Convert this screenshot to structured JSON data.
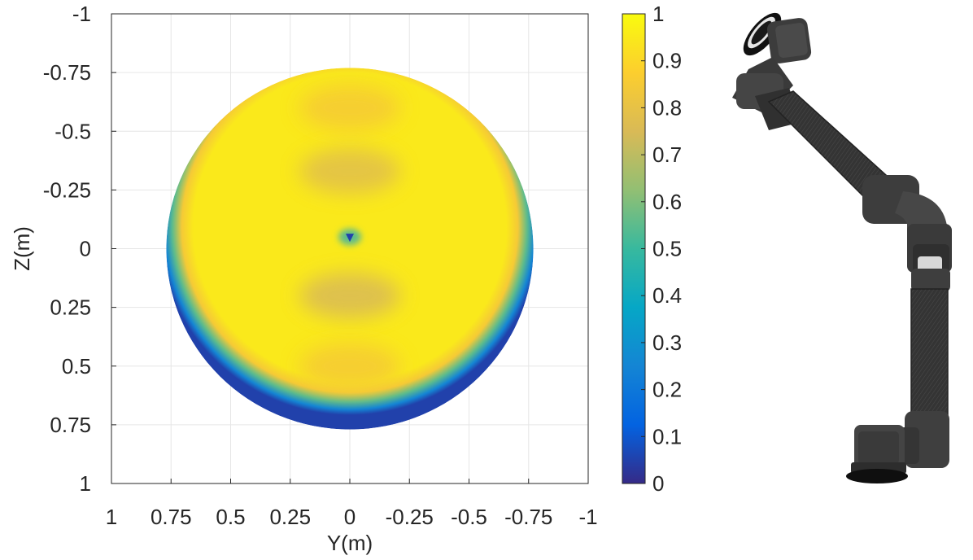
{
  "chart_data": {
    "type": "heatmap",
    "title": "",
    "xlabel": "Y(m)",
    "ylabel": "Z(m)",
    "xlim": [
      1,
      -1
    ],
    "ylim": [
      1,
      -1
    ],
    "x_reversed": true,
    "y_reversed": true,
    "grid": true,
    "xticks": [
      1,
      0.75,
      0.5,
      0.25,
      0,
      -0.25,
      -0.5,
      -0.75,
      -1
    ],
    "xtick_labels": [
      "1",
      "0.75",
      "0.5",
      "0.25",
      "0",
      "-0.25",
      "-0.5",
      "-0.75",
      "-1"
    ],
    "yticks": [
      -1,
      -0.75,
      -0.5,
      -0.25,
      0,
      0.25,
      0.5,
      0.75,
      1
    ],
    "ytick_labels": [
      "-1",
      "-0.75",
      "-0.5",
      "-0.25",
      "0",
      "0.25",
      "0.5",
      "0.75",
      "1"
    ],
    "workspace": {
      "shape": "disk",
      "center": [
        0,
        0
      ],
      "radius_y": 0.77,
      "radius_z_top": 0.77,
      "radius_z_bottom": 0.77,
      "interior_value": 0.95,
      "edge_value": 0.05,
      "singularity_point": [
        0,
        -0.05
      ],
      "singularity_value": 0.05,
      "bands": [
        {
          "z": -0.6,
          "value": 0.85
        },
        {
          "z": -0.33,
          "value": 0.78
        },
        {
          "z": 0.2,
          "value": 0.75
        },
        {
          "z": 0.5,
          "value": 0.85
        }
      ]
    },
    "colorbar": {
      "colormap": "parula",
      "range": [
        0,
        1
      ],
      "ticks": [
        0,
        0.1,
        0.2,
        0.3,
        0.4,
        0.5,
        0.6,
        0.7,
        0.8,
        0.9,
        1
      ],
      "tick_labels": [
        "0",
        "0.1",
        "0.2",
        "0.3",
        "0.4",
        "0.5",
        "0.6",
        "0.7",
        "0.8",
        "0.9",
        "1"
      ],
      "colors": [
        "#352a87",
        "#0363e1",
        "#1485d4",
        "#06a7c6",
        "#38b99e",
        "#92bf73",
        "#d9ba56",
        "#fcce2e",
        "#f9fb0e"
      ]
    }
  },
  "robot": {
    "description_icon": "robot-arm-icon",
    "color": "#3a3a3a"
  }
}
